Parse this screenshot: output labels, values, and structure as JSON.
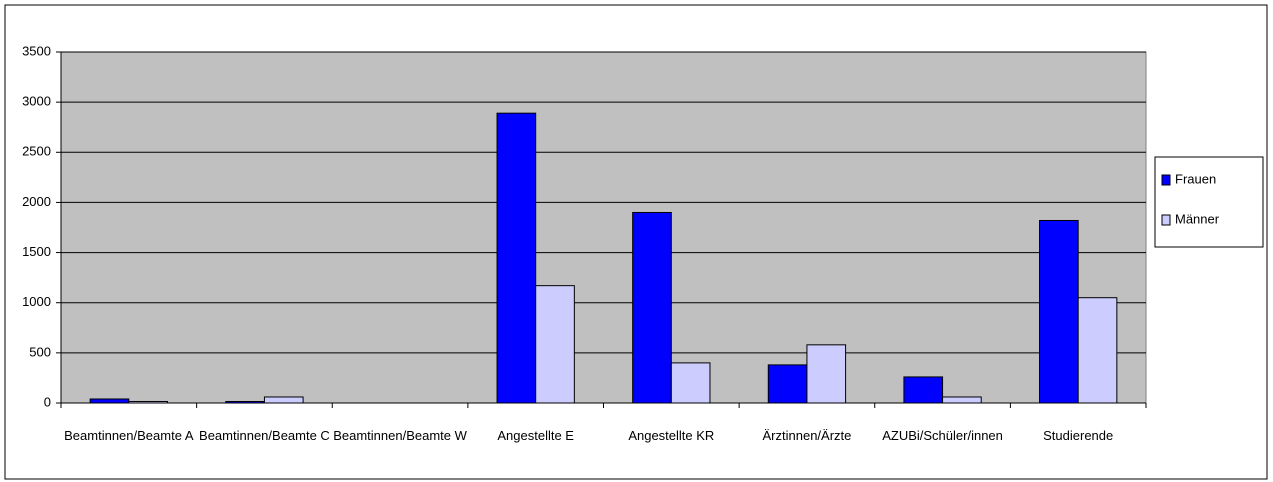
{
  "chart_data": {
    "type": "bar",
    "categories": [
      "Beamtinnen/Beamte A",
      "Beamtinnen/Beamte C",
      "Beamtinnen/Beamte W",
      "Angestellte E",
      "Angestellte KR",
      "Ärztinnen/Ärzte",
      "AZUBi/Schüler/innen",
      "Studierende"
    ],
    "series": [
      {
        "name": "Frauen",
        "color": "#0000ff",
        "values": [
          40,
          15,
          0,
          2890,
          1900,
          380,
          260,
          1820
        ]
      },
      {
        "name": "Männer",
        "color": "#ccccff",
        "values": [
          15,
          60,
          0,
          1170,
          400,
          580,
          60,
          1050
        ]
      }
    ],
    "ylim": [
      0,
      3500
    ],
    "yticks": [
      0,
      500,
      1000,
      1500,
      2000,
      2500,
      3000,
      3500
    ],
    "grid": true,
    "legend": "right"
  }
}
